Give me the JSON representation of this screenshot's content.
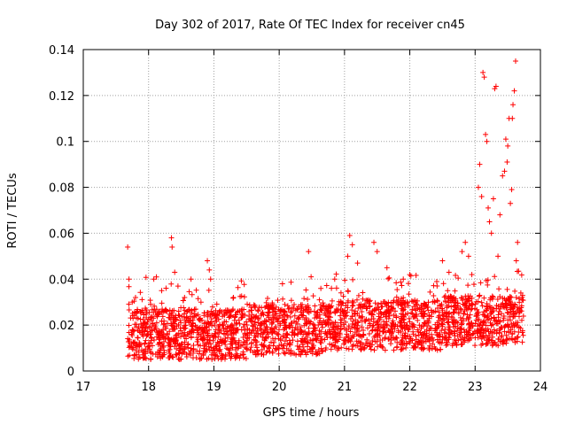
{
  "chart_data": {
    "type": "scatter",
    "title": "Day 302 of 2017, Rate Of TEC Index for receiver cn45",
    "xlabel": "GPS time / hours",
    "ylabel": "ROTI / TECUs",
    "xlim": [
      17,
      24
    ],
    "ylim": [
      0,
      0.14
    ],
    "xticks": [
      "17",
      "18",
      "19",
      "20",
      "21",
      "22",
      "23",
      "24"
    ],
    "yticks": [
      "0",
      "0.02",
      "0.04",
      "0.06",
      "0.08",
      "0.1",
      "0.12",
      "0.14"
    ],
    "grid": true,
    "marker": "+",
    "color": "#ff0000",
    "series": [
      {
        "name": "ROTI",
        "points": [
          [
            17.68,
            0.054
          ],
          [
            17.7,
            0.04
          ],
          [
            17.75,
            0.03
          ],
          [
            17.8,
            0.032
          ],
          [
            18.08,
            0.04
          ],
          [
            18.12,
            0.041
          ],
          [
            18.2,
            0.035
          ],
          [
            18.35,
            0.058
          ],
          [
            18.36,
            0.054
          ],
          [
            18.4,
            0.043
          ],
          [
            18.45,
            0.037
          ],
          [
            18.65,
            0.04
          ],
          [
            18.9,
            0.048
          ],
          [
            18.93,
            0.044
          ],
          [
            18.95,
            0.04
          ],
          [
            19.3,
            0.032
          ],
          [
            20.05,
            0.038
          ],
          [
            20.45,
            0.052
          ],
          [
            20.8,
            0.036
          ],
          [
            20.85,
            0.04
          ],
          [
            21.05,
            0.05
          ],
          [
            21.08,
            0.059
          ],
          [
            21.12,
            0.055
          ],
          [
            21.2,
            0.047
          ],
          [
            21.45,
            0.056
          ],
          [
            21.5,
            0.052
          ],
          [
            21.65,
            0.045
          ],
          [
            21.9,
            0.04
          ],
          [
            22.0,
            0.042
          ],
          [
            22.5,
            0.048
          ],
          [
            22.6,
            0.043
          ],
          [
            22.8,
            0.052
          ],
          [
            22.85,
            0.056
          ],
          [
            22.9,
            0.05
          ],
          [
            22.95,
            0.042
          ],
          [
            23.05,
            0.08
          ],
          [
            23.07,
            0.09
          ],
          [
            23.1,
            0.076
          ],
          [
            23.12,
            0.13
          ],
          [
            23.14,
            0.128
          ],
          [
            23.16,
            0.103
          ],
          [
            23.18,
            0.1
          ],
          [
            23.2,
            0.071
          ],
          [
            23.22,
            0.065
          ],
          [
            23.25,
            0.06
          ],
          [
            23.28,
            0.075
          ],
          [
            23.3,
            0.123
          ],
          [
            23.32,
            0.124
          ],
          [
            23.35,
            0.05
          ],
          [
            23.38,
            0.068
          ],
          [
            23.42,
            0.085
          ],
          [
            23.45,
            0.087
          ],
          [
            23.47,
            0.101
          ],
          [
            23.49,
            0.091
          ],
          [
            23.5,
            0.098
          ],
          [
            23.52,
            0.11
          ],
          [
            23.54,
            0.073
          ],
          [
            23.56,
            0.079
          ],
          [
            23.57,
            0.11
          ],
          [
            23.58,
            0.116
          ],
          [
            23.6,
            0.122
          ],
          [
            23.62,
            0.135
          ],
          [
            23.63,
            0.048
          ],
          [
            23.65,
            0.056
          ],
          [
            23.7,
            0.034
          ],
          [
            23.72,
            0.031
          ]
        ]
      }
    ]
  }
}
